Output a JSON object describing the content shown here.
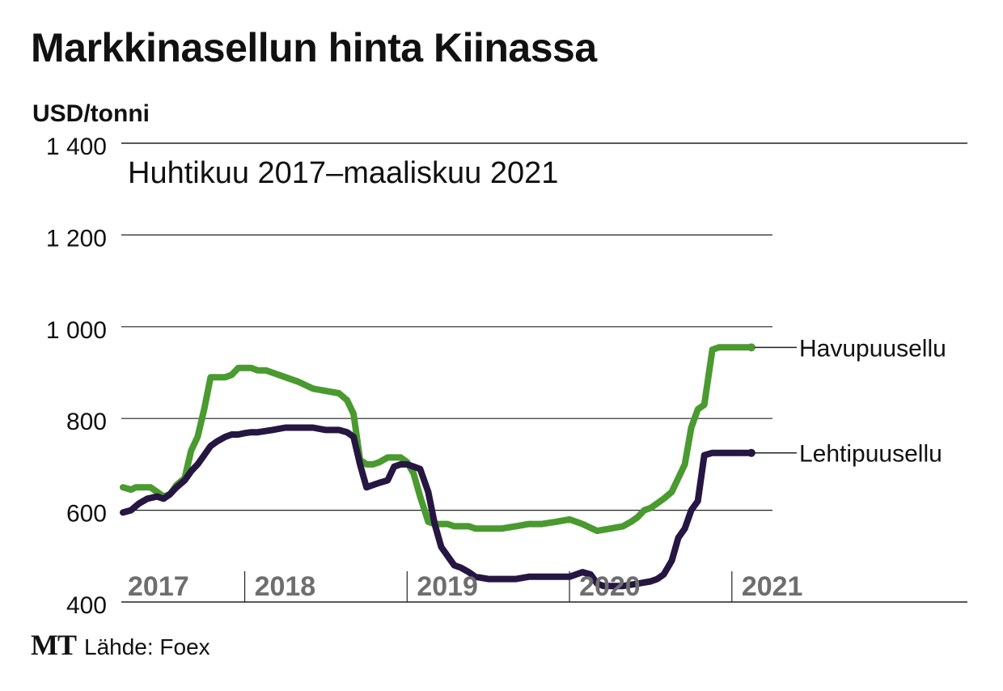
{
  "title": "Markkinasellun hinta Kiinassa",
  "unit_label": "USD/tonni",
  "footer": {
    "logo": "MT",
    "source": "Lähde: Foex"
  },
  "chart_data": {
    "type": "line",
    "title": "Markkinasellun hinta Kiinassa",
    "subtitle": "Huhtikuu 2017–maaliskuu 2021",
    "ylabel": "USD/tonni",
    "ylim": [
      400,
      1400
    ],
    "yticks": [
      400,
      600,
      800,
      1000,
      1200,
      1400
    ],
    "ytick_labels": [
      "400",
      "600",
      "800",
      "1 000",
      "1 200",
      "1 400"
    ],
    "xlim": [
      2017.25,
      2021.25
    ],
    "year_labels": [
      "2017",
      "2018",
      "2019",
      "2020",
      "2021"
    ],
    "year_dividers": [
      2018,
      2019,
      2020,
      2021
    ],
    "grid": true,
    "legend": "inline-right",
    "series": [
      {
        "name": "Havupuusellu",
        "color": "#4a9a30",
        "x": [
          2017.25,
          2017.3,
          2017.33,
          2017.38,
          2017.42,
          2017.46,
          2017.5,
          2017.54,
          2017.58,
          2017.63,
          2017.67,
          2017.71,
          2017.75,
          2017.79,
          2017.83,
          2017.88,
          2017.92,
          2017.96,
          2018.0,
          2018.04,
          2018.08,
          2018.13,
          2018.17,
          2018.25,
          2018.33,
          2018.42,
          2018.5,
          2018.58,
          2018.63,
          2018.67,
          2018.71,
          2018.75,
          2018.79,
          2018.83,
          2018.88,
          2018.92,
          2018.96,
          2019.0,
          2019.04,
          2019.08,
          2019.13,
          2019.17,
          2019.21,
          2019.25,
          2019.29,
          2019.33,
          2019.38,
          2019.42,
          2019.5,
          2019.58,
          2019.67,
          2019.75,
          2019.83,
          2019.92,
          2020.0,
          2020.08,
          2020.17,
          2020.25,
          2020.33,
          2020.38,
          2020.42,
          2020.46,
          2020.5,
          2020.54,
          2020.58,
          2020.63,
          2020.67,
          2020.71,
          2020.75,
          2020.79,
          2020.83,
          2020.88,
          2020.92,
          2020.96,
          2021.0,
          2021.02,
          2021.04,
          2021.06,
          2021.08,
          2021.1,
          2021.12
        ],
        "y": [
          650,
          645,
          650,
          650,
          650,
          640,
          630,
          635,
          655,
          670,
          730,
          760,
          820,
          890,
          890,
          890,
          895,
          910,
          910,
          910,
          905,
          905,
          900,
          890,
          880,
          865,
          860,
          855,
          840,
          810,
          710,
          700,
          700,
          705,
          715,
          715,
          715,
          705,
          680,
          630,
          575,
          570,
          570,
          570,
          565,
          565,
          565,
          560,
          560,
          560,
          565,
          570,
          570,
          575,
          580,
          570,
          555,
          560,
          565,
          575,
          585,
          600,
          605,
          615,
          625,
          640,
          670,
          700,
          780,
          820,
          830,
          950,
          955,
          955,
          955,
          955,
          955,
          955,
          955,
          955,
          955
        ]
      },
      {
        "name": "Lehtipuusellu",
        "color": "#261642",
        "x": [
          2017.25,
          2017.3,
          2017.35,
          2017.4,
          2017.46,
          2017.5,
          2017.54,
          2017.58,
          2017.63,
          2017.67,
          2017.71,
          2017.75,
          2017.79,
          2017.83,
          2017.88,
          2017.92,
          2017.96,
          2018.0,
          2018.04,
          2018.08,
          2018.17,
          2018.25,
          2018.33,
          2018.42,
          2018.5,
          2018.58,
          2018.63,
          2018.67,
          2018.71,
          2018.75,
          2018.79,
          2018.83,
          2018.88,
          2018.92,
          2018.96,
          2019.0,
          2019.04,
          2019.08,
          2019.13,
          2019.17,
          2019.21,
          2019.25,
          2019.29,
          2019.33,
          2019.38,
          2019.42,
          2019.5,
          2019.58,
          2019.67,
          2019.75,
          2019.83,
          2019.92,
          2020.0,
          2020.04,
          2020.08,
          2020.13,
          2020.17,
          2020.21,
          2020.25,
          2020.33,
          2020.42,
          2020.5,
          2020.54,
          2020.58,
          2020.63,
          2020.67,
          2020.71,
          2020.75,
          2020.79,
          2020.83,
          2020.88,
          2020.92,
          2020.96,
          2021.0,
          2021.04,
          2021.06,
          2021.08,
          2021.1,
          2021.12
        ],
        "y": [
          595,
          600,
          615,
          625,
          630,
          625,
          635,
          650,
          665,
          685,
          700,
          720,
          740,
          750,
          760,
          765,
          765,
          768,
          770,
          770,
          775,
          780,
          780,
          780,
          775,
          775,
          770,
          760,
          700,
          650,
          655,
          660,
          665,
          695,
          700,
          700,
          695,
          690,
          640,
          570,
          520,
          500,
          480,
          475,
          465,
          455,
          450,
          450,
          450,
          455,
          455,
          455,
          455,
          460,
          465,
          460,
          440,
          435,
          435,
          435,
          440,
          445,
          450,
          460,
          490,
          540,
          560,
          600,
          620,
          720,
          725,
          725,
          725,
          725,
          725,
          725,
          725,
          725,
          725
        ]
      }
    ]
  }
}
